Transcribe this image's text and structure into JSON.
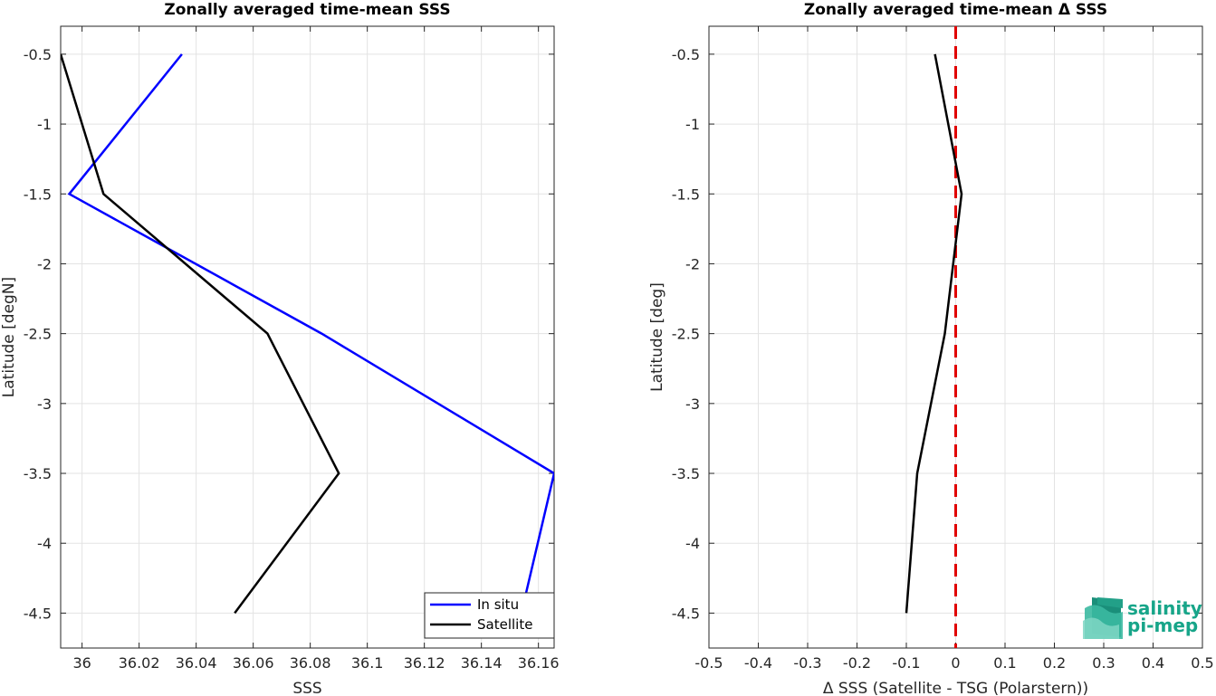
{
  "colors": {
    "in_situ": "#0000ff",
    "satellite": "#000000",
    "zero_line": "#e00000",
    "grid": "#e3e3e3",
    "logo": "#17a589"
  },
  "logo": {
    "line1": "salinity",
    "line2": "pi-mep"
  },
  "chart_data": [
    {
      "type": "line",
      "title": "Zonally averaged time-mean SSS",
      "xlabel": "SSS",
      "ylabel": "Latitude [degN]",
      "xlim": [
        35.9925,
        36.1655
      ],
      "ylim": [
        -4.75,
        -0.3
      ],
      "xticks": [
        36,
        36.02,
        36.04,
        36.06,
        36.08,
        36.1,
        36.12,
        36.14,
        36.16
      ],
      "xtick_labels": [
        "36",
        "36.02",
        "36.04",
        "36.06",
        "36.08",
        "36.1",
        "36.12",
        "36.14",
        "36.16"
      ],
      "yticks": [
        -0.5,
        -1,
        -1.5,
        -2,
        -2.5,
        -3,
        -3.5,
        -4,
        -4.5
      ],
      "ytick_labels": [
        "-0.5",
        "-1",
        "-1.5",
        "-2",
        "-2.5",
        "-3",
        "-3.5",
        "-4",
        "-4.5"
      ],
      "grid": true,
      "legend_position": "bottom-right",
      "series": [
        {
          "name": "In situ",
          "x": [
            36.035,
            35.9955,
            36.084,
            36.1655,
            36.154
          ],
          "y": [
            -0.5,
            -1.5,
            -2.5,
            -3.5,
            -4.5
          ]
        },
        {
          "name": "Satellite",
          "x": [
            35.9925,
            36.0075,
            36.065,
            36.09,
            36.0535
          ],
          "y": [
            -0.5,
            -1.5,
            -2.5,
            -3.5,
            -4.5
          ]
        }
      ]
    },
    {
      "type": "line",
      "title": "Zonally averaged time-mean Δ SSS",
      "xlabel": "Δ SSS (Satellite - TSG (Polarstern))",
      "ylabel": "Latitude [deg]",
      "xlim": [
        -0.5,
        0.5
      ],
      "ylim": [
        -4.75,
        -0.3
      ],
      "xticks": [
        -0.5,
        -0.4,
        -0.3,
        -0.2,
        -0.1,
        0,
        0.1,
        0.2,
        0.3,
        0.4,
        0.5
      ],
      "xtick_labels": [
        "-0.5",
        "-0.4",
        "-0.3",
        "-0.2",
        "-0.1",
        "0",
        "0.1",
        "0.2",
        "0.3",
        "0.4",
        "0.5"
      ],
      "yticks": [
        -0.5,
        -1,
        -1.5,
        -2,
        -2.5,
        -3,
        -3.5,
        -4,
        -4.5
      ],
      "ytick_labels": [
        "-0.5",
        "-1",
        "-1.5",
        "-2",
        "-2.5",
        "-3",
        "-3.5",
        "-4",
        "-4.5"
      ],
      "grid": true,
      "series": [
        {
          "x": [
            -0.042,
            0.012,
            -0.022,
            -0.078,
            -0.1
          ],
          "y": [
            -0.5,
            -1.5,
            -2.5,
            -3.5,
            -4.5
          ]
        }
      ],
      "reference_line": {
        "x": 0,
        "style": "dashed"
      }
    }
  ]
}
